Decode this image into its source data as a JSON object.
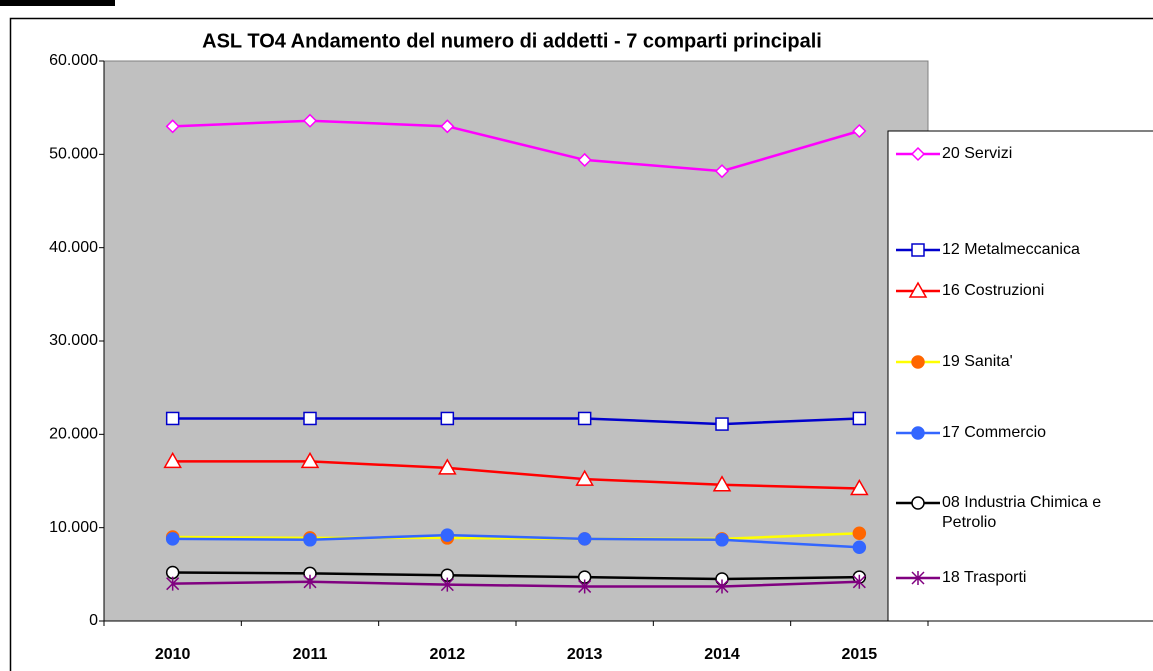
{
  "chart_data": {
    "type": "line",
    "title": "ASL TO4  Andamento del numero di addetti  - 7 comparti principali",
    "categories": [
      "2010",
      "2011",
      "2012",
      "2013",
      "2014",
      "2015"
    ],
    "ylim": [
      0,
      60000
    ],
    "yticks": [
      0,
      {
        "value": 10000,
        "label": "10.000"
      },
      {
        "value": 20000,
        "label": "20.000"
      },
      {
        "value": 30000,
        "label": "30.000"
      },
      {
        "value": 40000,
        "label": "40.000"
      },
      {
        "value": 50000,
        "label": "50.000"
      },
      {
        "value": 60000,
        "label": "60.000"
      }
    ],
    "grid": false,
    "legend": "right",
    "series": [
      {
        "name": "20 Servizi",
        "color": "#ff00ff",
        "marker": "diamond",
        "marker_fill": "#ffffff",
        "values": [
          53000,
          53600,
          53000,
          49400,
          48200,
          52500
        ]
      },
      {
        "name": "12 Metalmeccanica",
        "color": "#0000cc",
        "marker": "square",
        "marker_fill": "#ffffff",
        "values": [
          21700,
          21700,
          21700,
          21700,
          21100,
          21700
        ]
      },
      {
        "name": "16 Costruzioni",
        "color": "#ff0000",
        "marker": "triangle",
        "marker_fill": "#ffffff",
        "values": [
          17100,
          17100,
          16400,
          15200,
          14600,
          14200
        ]
      },
      {
        "name": "19 Sanita'",
        "color": "#ffff00",
        "marker": "circle",
        "marker_fill": "#ff6600",
        "values": [
          9000,
          8900,
          8900,
          8800,
          8800,
          9400
        ]
      },
      {
        "name": "17 Commercio",
        "color": "#3366ff",
        "marker": "circle",
        "marker_fill": "#3366ff",
        "values": [
          8800,
          8700,
          9200,
          8800,
          8700,
          7900
        ]
      },
      {
        "name": "08 Industria Chimica e Petrolio",
        "color": "#000000",
        "marker": "circle",
        "marker_fill": "#ffffff",
        "values": [
          5200,
          5100,
          4900,
          4700,
          4500,
          4700
        ]
      },
      {
        "name": "18 Trasporti",
        "color": "#800080",
        "marker": "star",
        "marker_fill": "#800080",
        "values": [
          4000,
          4200,
          3900,
          3700,
          3700,
          4200
        ]
      }
    ]
  }
}
